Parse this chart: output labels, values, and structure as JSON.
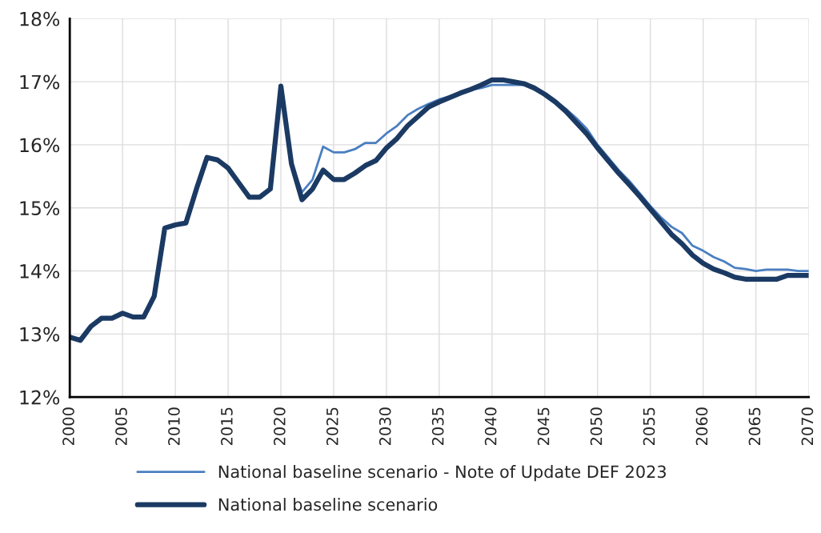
{
  "chart_data": {
    "type": "line",
    "x": [
      2000,
      2001,
      2002,
      2003,
      2004,
      2005,
      2006,
      2007,
      2008,
      2009,
      2010,
      2011,
      2012,
      2013,
      2014,
      2015,
      2016,
      2017,
      2018,
      2019,
      2020,
      2021,
      2022,
      2023,
      2024,
      2025,
      2026,
      2027,
      2028,
      2029,
      2030,
      2031,
      2032,
      2033,
      2034,
      2035,
      2036,
      2037,
      2038,
      2039,
      2040,
      2041,
      2042,
      2043,
      2044,
      2045,
      2046,
      2047,
      2048,
      2049,
      2050,
      2051,
      2052,
      2053,
      2054,
      2055,
      2056,
      2057,
      2058,
      2059,
      2060,
      2061,
      2062,
      2063,
      2064,
      2065,
      2066,
      2067,
      2068,
      2069,
      2070
    ],
    "series": [
      {
        "name": "National baseline scenario - Note of Update DEF 2023",
        "color": "#4a7fc1",
        "x": [
          2021,
          2022,
          2023,
          2024,
          2025,
          2026,
          2027,
          2028,
          2029,
          2030,
          2031,
          2032,
          2033,
          2034,
          2035,
          2036,
          2037,
          2038,
          2039,
          2040,
          2041,
          2042,
          2043,
          2044,
          2045,
          2046,
          2047,
          2048,
          2049,
          2050,
          2051,
          2052,
          2053,
          2054,
          2055,
          2056,
          2057,
          2058,
          2059,
          2060,
          2061,
          2062,
          2063,
          2064,
          2065,
          2066,
          2067,
          2068,
          2069,
          2070
        ],
        "values": [
          15.7,
          15.25,
          15.45,
          15.97,
          15.88,
          15.88,
          15.93,
          16.03,
          16.03,
          16.18,
          16.3,
          16.47,
          16.57,
          16.65,
          16.72,
          16.77,
          16.82,
          16.87,
          16.9,
          16.95,
          16.95,
          16.95,
          16.95,
          16.9,
          16.8,
          16.7,
          16.57,
          16.42,
          16.25,
          16.0,
          15.8,
          15.6,
          15.43,
          15.23,
          15.03,
          14.85,
          14.7,
          14.6,
          14.4,
          14.32,
          14.22,
          14.15,
          14.05,
          14.03,
          14.0,
          14.02,
          14.02,
          14.02,
          14.0,
          14.0
        ]
      },
      {
        "name": "National baseline scenario",
        "color": "#1b3a63",
        "values": [
          12.95,
          12.9,
          13.12,
          13.25,
          13.25,
          13.33,
          13.27,
          13.27,
          13.6,
          14.68,
          14.73,
          14.76,
          15.3,
          15.8,
          15.76,
          15.63,
          15.4,
          15.17,
          15.17,
          15.3,
          16.93,
          15.7,
          15.13,
          15.3,
          15.6,
          15.45,
          15.45,
          15.55,
          15.67,
          15.75,
          15.95,
          16.1,
          16.3,
          16.45,
          16.6,
          16.68,
          16.75,
          16.82,
          16.88,
          16.95,
          17.03,
          17.03,
          17.0,
          16.97,
          16.9,
          16.8,
          16.68,
          16.53,
          16.35,
          16.17,
          15.95,
          15.75,
          15.55,
          15.37,
          15.18,
          14.98,
          14.78,
          14.58,
          14.43,
          14.25,
          14.12,
          14.03,
          13.97,
          13.9,
          13.87,
          13.87,
          13.87,
          13.87,
          13.93,
          13.93,
          13.93
        ]
      }
    ],
    "xlim": [
      2000,
      2070
    ],
    "xticks": [
      2000,
      2005,
      2010,
      2015,
      2020,
      2025,
      2030,
      2035,
      2040,
      2045,
      2050,
      2055,
      2060,
      2065,
      2070
    ],
    "ylim": [
      12,
      18
    ],
    "yticks": [
      {
        "value": 12,
        "label": "12%"
      },
      {
        "value": 13,
        "label": "13%"
      },
      {
        "value": 14,
        "label": "14%"
      },
      {
        "value": 15,
        "label": "15%"
      },
      {
        "value": 16,
        "label": "16%"
      },
      {
        "value": 17,
        "label": "17%"
      },
      {
        "value": 18,
        "label": "18%"
      }
    ],
    "grid": true,
    "legend": "bottom",
    "marker": "none",
    "line_style": "solid"
  }
}
